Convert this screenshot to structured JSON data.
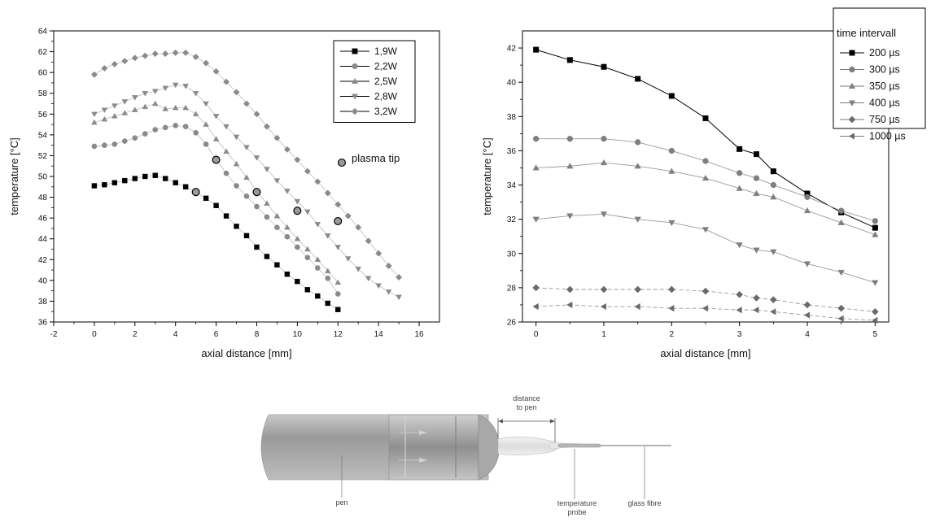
{
  "chart_data": [
    {
      "type": "scatter",
      "xlabel": "axial distance [mm]",
      "ylabel": "temperature [°C]",
      "xlim": [
        -2,
        17
      ],
      "ylim": [
        36,
        64
      ],
      "xticks": [
        -2,
        0,
        2,
        4,
        6,
        8,
        10,
        12,
        14,
        16
      ],
      "yticks": [
        36,
        38,
        40,
        42,
        44,
        46,
        48,
        50,
        52,
        54,
        56,
        58,
        60,
        62,
        64
      ],
      "legend_position": "top-right",
      "series": [
        {
          "name": "1,9W",
          "marker": "square",
          "x": [
            0,
            0.5,
            1,
            1.5,
            2,
            2.5,
            3,
            3.5,
            4,
            4.5,
            5,
            5.5,
            6,
            6.5,
            7,
            7.5,
            8,
            8.5,
            9,
            9.5,
            10,
            10.5,
            11,
            11.5,
            12
          ],
          "y": [
            49.1,
            49.2,
            49.4,
            49.6,
            49.8,
            50.0,
            50.1,
            49.8,
            49.4,
            49.0,
            48.5,
            47.9,
            47.2,
            46.2,
            45.2,
            44.3,
            43.2,
            42.3,
            41.5,
            40.6,
            39.9,
            39.1,
            38.5,
            37.8,
            37.2
          ]
        },
        {
          "name": "2,2W",
          "marker": "circle",
          "x": [
            0,
            0.5,
            1,
            1.5,
            2,
            2.5,
            3,
            3.5,
            4,
            4.5,
            5,
            5.5,
            6,
            6.5,
            7,
            7.5,
            8,
            8.5,
            9,
            9.5,
            10,
            10.5,
            11,
            11.5,
            12
          ],
          "y": [
            52.9,
            53.0,
            53.1,
            53.4,
            53.7,
            54.1,
            54.5,
            54.7,
            54.9,
            54.8,
            54.2,
            53.1,
            51.6,
            50.3,
            49.1,
            48.1,
            47.1,
            46.1,
            45.1,
            44.2,
            43.2,
            42.2,
            41.2,
            40.2,
            38.7
          ]
        },
        {
          "name": "2,5W",
          "marker": "triangle-up",
          "x": [
            0,
            0.5,
            1,
            1.5,
            2,
            2.5,
            3,
            3.5,
            4,
            4.5,
            5,
            5.5,
            6,
            6.5,
            7,
            7.5,
            8,
            8.5,
            9,
            9.5,
            10,
            10.5,
            11,
            11.5,
            12
          ],
          "y": [
            55.2,
            55.5,
            55.8,
            56.1,
            56.4,
            56.7,
            57.0,
            56.5,
            56.6,
            56.6,
            56.0,
            55.0,
            53.6,
            52.4,
            51.2,
            49.9,
            48.6,
            47.4,
            46.2,
            45.1,
            44.0,
            43.0,
            42.0,
            40.9,
            39.8
          ]
        },
        {
          "name": "2,8W",
          "marker": "triangle-down",
          "x": [
            0,
            0.5,
            1,
            1.5,
            2,
            2.5,
            3,
            3.5,
            4,
            4.5,
            5,
            5.5,
            6,
            6.5,
            7,
            7.5,
            8,
            8.5,
            9,
            9.5,
            10,
            10.5,
            11,
            11.5,
            12,
            12.5,
            13,
            13.5,
            14,
            14.5,
            15
          ],
          "y": [
            56.0,
            56.4,
            56.8,
            57.2,
            57.6,
            58.0,
            58.2,
            58.5,
            58.8,
            58.7,
            58.0,
            57.0,
            55.8,
            54.8,
            53.8,
            52.8,
            51.8,
            50.7,
            49.6,
            48.6,
            47.6,
            46.6,
            45.4,
            44.3,
            43.2,
            42.1,
            41.1,
            40.2,
            39.5,
            38.9,
            38.4
          ]
        },
        {
          "name": "3,2W",
          "marker": "diamond",
          "x": [
            0,
            0.5,
            1,
            1.5,
            2,
            2.5,
            3,
            3.5,
            4,
            4.5,
            5,
            5.5,
            6,
            6.5,
            7,
            7.5,
            8,
            8.5,
            9,
            9.5,
            10,
            10.5,
            11,
            11.5,
            12,
            12.5,
            13,
            13.5,
            14,
            14.5,
            15
          ],
          "y": [
            59.8,
            60.4,
            60.8,
            61.1,
            61.4,
            61.6,
            61.8,
            61.8,
            61.9,
            61.9,
            61.5,
            60.9,
            60.1,
            59.1,
            58.1,
            57.0,
            56.0,
            54.8,
            53.7,
            52.6,
            51.6,
            50.5,
            49.5,
            48.4,
            47.3,
            46.2,
            45.1,
            43.8,
            42.6,
            41.4,
            40.3
          ]
        },
        {
          "name": "plasma tip",
          "marker": "hex-circle",
          "x": [
            5,
            6,
            8,
            10,
            12
          ],
          "y": [
            48.5,
            51.6,
            48.5,
            46.7,
            45.7
          ]
        }
      ]
    },
    {
      "type": "line",
      "xlabel": "axial distance [mm]",
      "ylabel": "temperature [°C]",
      "xlim": [
        -0.2,
        5.2
      ],
      "ylim": [
        26,
        43
      ],
      "xticks": [
        0,
        1,
        2,
        3,
        4,
        5
      ],
      "yticks": [
        26,
        28,
        30,
        32,
        34,
        36,
        38,
        40,
        42
      ],
      "legend_title": "time intervall",
      "legend_position": "top-right",
      "series": [
        {
          "name": "200 µs",
          "marker": "square",
          "x": [
            0,
            0.5,
            1,
            1.5,
            2,
            2.5,
            3,
            3.25,
            3.5,
            4,
            4.5,
            5
          ],
          "y": [
            41.9,
            41.3,
            40.9,
            40.2,
            39.2,
            37.9,
            36.1,
            35.8,
            34.8,
            33.5,
            32.4,
            31.5
          ]
        },
        {
          "name": "300 µs",
          "marker": "circle",
          "x": [
            0,
            0.5,
            1,
            1.5,
            2,
            2.5,
            3,
            3.25,
            3.5,
            4,
            4.5,
            5
          ],
          "y": [
            36.7,
            36.7,
            36.7,
            36.5,
            36.0,
            35.4,
            34.7,
            34.4,
            34.0,
            33.3,
            32.5,
            31.9
          ]
        },
        {
          "name": "350 µs",
          "marker": "triangle-up",
          "x": [
            0,
            0.5,
            1,
            1.5,
            2,
            2.5,
            3,
            3.25,
            3.5,
            4,
            4.5,
            5
          ],
          "y": [
            35.0,
            35.1,
            35.3,
            35.1,
            34.8,
            34.4,
            33.8,
            33.5,
            33.3,
            32.5,
            31.8,
            31.1
          ]
        },
        {
          "name": "400 µs",
          "marker": "triangle-down",
          "x": [
            0,
            0.5,
            1,
            1.5,
            2,
            2.5,
            3,
            3.25,
            3.5,
            4,
            4.5,
            5
          ],
          "y": [
            32.0,
            32.2,
            32.3,
            32.0,
            31.8,
            31.4,
            30.5,
            30.2,
            30.1,
            29.4,
            28.9,
            28.3
          ]
        },
        {
          "name": "750 µs",
          "marker": "diamond",
          "x": [
            0,
            0.5,
            1,
            1.5,
            2,
            2.5,
            3,
            3.25,
            3.5,
            4,
            4.5,
            5
          ],
          "y": [
            28.0,
            27.9,
            27.9,
            27.9,
            27.9,
            27.8,
            27.6,
            27.4,
            27.3,
            27.0,
            26.8,
            26.6
          ]
        },
        {
          "name": "1000 µs",
          "marker": "triangle-left",
          "x": [
            0,
            0.5,
            1,
            1.5,
            2,
            2.5,
            3,
            3.25,
            3.5,
            4,
            4.5,
            5
          ],
          "y": [
            26.9,
            27.0,
            26.9,
            26.9,
            26.8,
            26.8,
            26.7,
            26.7,
            26.6,
            26.4,
            26.2,
            26.1
          ]
        }
      ]
    }
  ],
  "diagram": {
    "labels": {
      "pen": "pen",
      "distance_line1": "distance",
      "distance_line2": "to pen",
      "probe_line1": "temperature",
      "probe_line2": "probe",
      "fibre": "glass fibre"
    }
  }
}
